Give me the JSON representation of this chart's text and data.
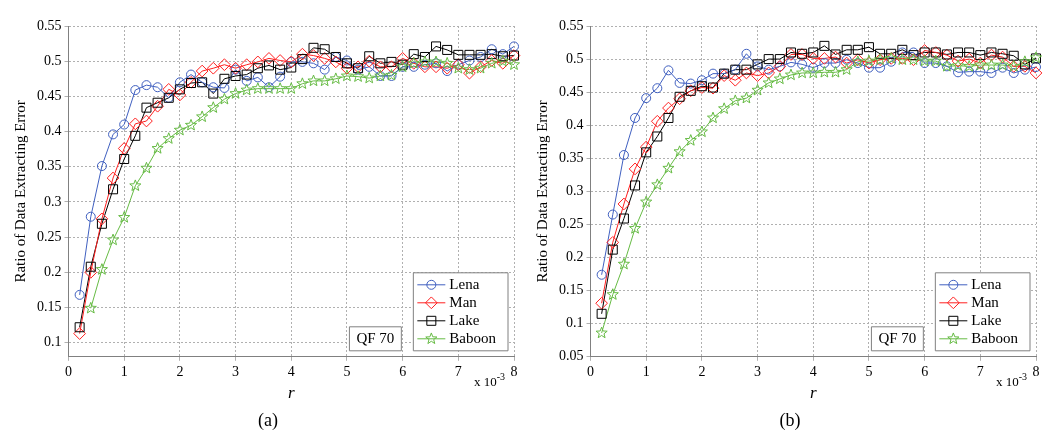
{
  "chart_data": [
    {
      "type": "line",
      "xlabel": "r",
      "ylabel": "Ratio of Data Extracting Error",
      "x": [
        0.2,
        0.4,
        0.6,
        0.8,
        1.0,
        1.2,
        1.4,
        1.6,
        1.8,
        2.0,
        2.2,
        2.4,
        2.6,
        2.8,
        3.0,
        3.2,
        3.4,
        3.6,
        3.8,
        4.0,
        4.2,
        4.4,
        4.6,
        4.8,
        5.0,
        5.2,
        5.4,
        5.6,
        5.8,
        6.0,
        6.2,
        6.4,
        6.6,
        6.8,
        7.0,
        7.2,
        7.4,
        7.6,
        7.8,
        8.0
      ],
      "xlim": [
        0,
        8
      ],
      "xticks": [
        0,
        1,
        2,
        3,
        4,
        5,
        6,
        7,
        8
      ],
      "ylim": [
        0.08,
        0.55
      ],
      "yticks": [
        0.1,
        0.15,
        0.2,
        0.25,
        0.3,
        0.35,
        0.4,
        0.45,
        0.5,
        0.55
      ],
      "grid": true,
      "legend": "bottom right",
      "annotations": [
        "QF 70",
        "x 10$^{-3}$",
        "(a)"
      ],
      "series": [
        {
          "name": "Lena",
          "color": "#4060c0",
          "marker": "circle",
          "values": [
            0.168,
            0.279,
            0.351,
            0.396,
            0.41,
            0.459,
            0.466,
            0.463,
            0.448,
            0.47,
            0.481,
            0.47,
            0.463,
            0.462,
            0.488,
            0.472,
            0.477,
            0.463,
            0.478,
            0.499,
            0.499,
            0.497,
            0.488,
            0.506,
            0.501,
            0.488,
            0.492,
            0.479,
            0.479,
            0.492,
            0.492,
            0.495,
            0.497,
            0.486,
            0.495,
            0.501,
            0.506,
            0.517,
            0.51,
            0.521
          ]
        },
        {
          "name": "Man",
          "color": "#ff2020",
          "marker": "diamond",
          "values": [
            0.113,
            0.2,
            0.276,
            0.334,
            0.376,
            0.411,
            0.415,
            0.436,
            0.46,
            0.452,
            0.47,
            0.486,
            0.49,
            0.495,
            0.49,
            0.495,
            0.499,
            0.504,
            0.501,
            0.499,
            0.51,
            0.508,
            0.504,
            0.499,
            0.49,
            0.492,
            0.5,
            0.492,
            0.492,
            0.504,
            0.497,
            0.492,
            0.492,
            0.49,
            0.495,
            0.483,
            0.492,
            0.501,
            0.497,
            0.508
          ]
        },
        {
          "name": "Lake",
          "color": "#000000",
          "marker": "square",
          "values": [
            0.122,
            0.208,
            0.269,
            0.318,
            0.361,
            0.394,
            0.434,
            0.441,
            0.448,
            0.46,
            0.469,
            0.47,
            0.454,
            0.475,
            0.479,
            0.481,
            0.49,
            0.494,
            0.488,
            0.491,
            0.503,
            0.519,
            0.517,
            0.506,
            0.497,
            0.49,
            0.507,
            0.497,
            0.499,
            0.495,
            0.51,
            0.506,
            0.521,
            0.516,
            0.509,
            0.509,
            0.509,
            0.51,
            0.507,
            0.508
          ]
        },
        {
          "name": "Baboon",
          "color": "#66bb44",
          "marker": "star",
          "values": [
            null,
            0.149,
            0.204,
            0.246,
            0.278,
            0.323,
            0.348,
            0.376,
            0.39,
            0.402,
            0.409,
            0.421,
            0.434,
            0.446,
            0.454,
            0.459,
            0.461,
            0.461,
            0.461,
            0.461,
            0.468,
            0.472,
            0.472,
            0.475,
            0.479,
            0.478,
            0.476,
            0.479,
            0.48,
            0.492,
            0.497,
            0.499,
            0.499,
            0.497,
            0.49,
            0.488,
            0.49,
            0.497,
            0.5,
            0.495
          ]
        }
      ]
    },
    {
      "type": "line",
      "xlabel": "r",
      "ylabel": "Ratio of Data Extracting Error",
      "x": [
        0.2,
        0.4,
        0.6,
        0.8,
        1.0,
        1.2,
        1.4,
        1.6,
        1.8,
        2.0,
        2.2,
        2.4,
        2.6,
        2.8,
        3.0,
        3.2,
        3.4,
        3.6,
        3.8,
        4.0,
        4.2,
        4.4,
        4.6,
        4.8,
        5.0,
        5.2,
        5.4,
        5.6,
        5.8,
        6.0,
        6.2,
        6.4,
        6.6,
        6.8,
        7.0,
        7.2,
        7.4,
        7.6,
        7.8,
        8.0
      ],
      "xlim": [
        0,
        8
      ],
      "xticks": [
        0,
        1,
        2,
        3,
        4,
        5,
        6,
        7,
        8
      ],
      "ylim": [
        0.05,
        0.55
      ],
      "yticks": [
        0.05,
        0.1,
        0.15,
        0.2,
        0.25,
        0.3,
        0.35,
        0.4,
        0.45,
        0.5,
        0.55
      ],
      "grid": true,
      "legend": "bottom right",
      "annotations": [
        "QF 70",
        "x 10$^{-3}$",
        "(b)"
      ],
      "series": [
        {
          "name": "Lena",
          "color": "#4060c0",
          "marker": "circle",
          "values": [
            0.174,
            0.265,
            0.355,
            0.411,
            0.441,
            0.456,
            0.483,
            0.464,
            0.463,
            0.468,
            0.478,
            0.478,
            0.484,
            0.508,
            0.489,
            0.484,
            0.489,
            0.495,
            0.492,
            0.487,
            0.494,
            0.494,
            0.499,
            0.494,
            0.487,
            0.487,
            0.496,
            0.51,
            0.51,
            0.494,
            0.494,
            0.489,
            0.48,
            0.481,
            0.481,
            0.479,
            0.487,
            0.479,
            0.484,
            0.488
          ]
        },
        {
          "name": "Man",
          "color": "#ff2020",
          "marker": "diamond",
          "values": [
            0.131,
            0.223,
            0.281,
            0.334,
            0.367,
            0.406,
            0.426,
            0.44,
            0.452,
            0.457,
            0.456,
            0.475,
            0.468,
            0.479,
            0.475,
            0.479,
            0.489,
            0.507,
            0.507,
            0.501,
            0.501,
            0.503,
            0.494,
            0.499,
            0.494,
            0.499,
            0.501,
            0.501,
            0.499,
            0.513,
            0.51,
            0.506,
            0.497,
            0.5,
            0.494,
            0.506,
            0.503,
            0.489,
            0.489,
            0.479
          ]
        },
        {
          "name": "Lake",
          "color": "#000000",
          "marker": "square",
          "values": [
            0.115,
            0.212,
            0.259,
            0.309,
            0.359,
            0.383,
            0.411,
            0.443,
            0.452,
            0.459,
            0.457,
            0.478,
            0.484,
            0.484,
            0.492,
            0.5,
            0.5,
            0.51,
            0.508,
            0.51,
            0.52,
            0.507,
            0.514,
            0.514,
            0.518,
            0.508,
            0.508,
            0.514,
            0.506,
            0.51,
            0.51,
            0.507,
            0.51,
            0.51,
            0.506,
            0.51,
            0.508,
            0.505,
            0.492,
            0.501
          ]
        },
        {
          "name": "Baboon",
          "color": "#66bb44",
          "marker": "star",
          "values": [
            0.086,
            0.144,
            0.19,
            0.244,
            0.284,
            0.31,
            0.335,
            0.36,
            0.377,
            0.39,
            0.411,
            0.425,
            0.437,
            0.441,
            0.453,
            0.464,
            0.47,
            0.476,
            0.479,
            0.479,
            0.48,
            0.48,
            0.484,
            0.496,
            0.497,
            0.499,
            0.501,
            0.499,
            0.499,
            0.497,
            0.497,
            0.489,
            0.49,
            0.489,
            0.491,
            0.491,
            0.491,
            0.489,
            0.496,
            0.502
          ]
        }
      ]
    }
  ]
}
